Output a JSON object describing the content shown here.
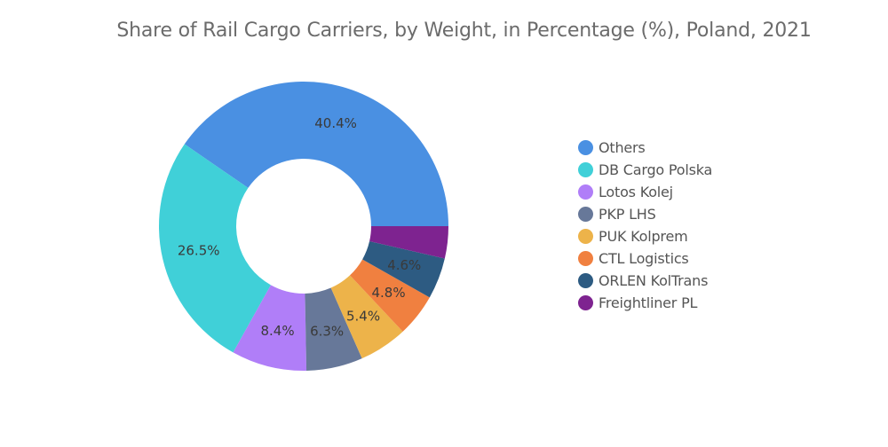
{
  "chart_data": {
    "type": "pie",
    "title": "Share of Rail Cargo Carriers, by Weight, in Percentage (%), Poland, 2021",
    "legend_position": "right",
    "donut": true,
    "slices": [
      {
        "label": "Others",
        "value": 40.4,
        "display": "40.4%",
        "color": "#4a90e2"
      },
      {
        "label": "DB Cargo Polska",
        "value": 26.5,
        "display": "26.5%",
        "color": "#40d0d8"
      },
      {
        "label": "Lotos Kolej",
        "value": 8.4,
        "display": "8.4%",
        "color": "#b07ef8"
      },
      {
        "label": "PKP LHS",
        "value": 6.3,
        "display": "6.3%",
        "color": "#677899"
      },
      {
        "label": "PUK Kolprem",
        "value": 5.4,
        "display": "5.4%",
        "color": "#edb34a"
      },
      {
        "label": "CTL Logistics",
        "value": 4.8,
        "display": "4.8%",
        "color": "#f08040"
      },
      {
        "label": "ORLEN KolTrans",
        "value": 4.6,
        "display": "4.6%",
        "color": "#2d5b82"
      },
      {
        "label": "Freightliner PL",
        "value": 3.6,
        "display": "",
        "color": "#7e2390"
      }
    ]
  }
}
